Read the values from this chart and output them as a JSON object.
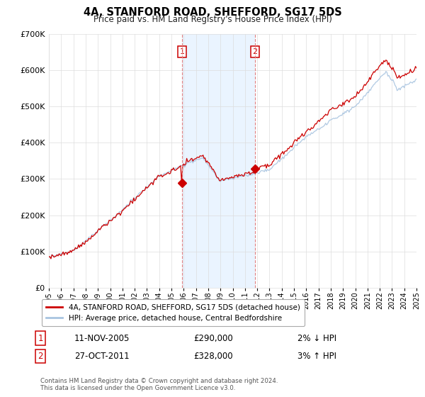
{
  "title": "4A, STANFORD ROAD, SHEFFORD, SG17 5DS",
  "subtitle": "Price paid vs. HM Land Registry's House Price Index (HPI)",
  "legend_line1": "4A, STANFORD ROAD, SHEFFORD, SG17 5DS (detached house)",
  "legend_line2": "HPI: Average price, detached house, Central Bedfordshire",
  "annotation1_label": "1",
  "annotation1_date": "11-NOV-2005",
  "annotation1_price": "£290,000",
  "annotation1_hpi": "2% ↓ HPI",
  "annotation2_label": "2",
  "annotation2_date": "27-OCT-2011",
  "annotation2_price": "£328,000",
  "annotation2_hpi": "3% ↑ HPI",
  "footnote1": "Contains HM Land Registry data © Crown copyright and database right 2024.",
  "footnote2": "This data is licensed under the Open Government Licence v3.0.",
  "sale1_year": 2005.87,
  "sale1_price": 290000,
  "sale2_year": 2011.83,
  "sale2_price": 328000,
  "hpi_color": "#a8c4e0",
  "price_color": "#cc0000",
  "shade_color": "#ddeeff",
  "vline_color": "#e08080",
  "background_color": "#ffffff",
  "grid_color": "#dddddd",
  "ylim_min": 0,
  "ylim_max": 700000,
  "xmin": 1995,
  "xmax": 2025,
  "seed": 17
}
